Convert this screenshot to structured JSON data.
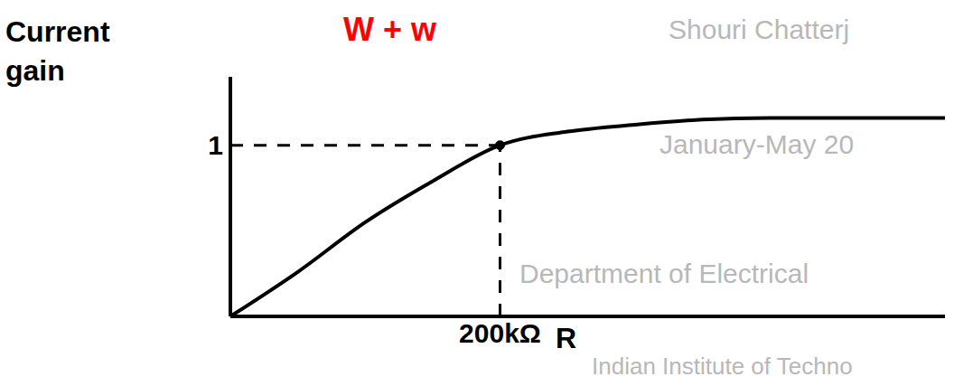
{
  "chart_data": {
    "type": "line",
    "title": "W + w",
    "xlabel": "R",
    "ylabel": "Current gain",
    "x": [
      0,
      50000,
      100000,
      150000,
      200000,
      250000,
      300000,
      350000,
      400000,
      530000
    ],
    "series": [
      {
        "name": "Current gain",
        "color": "#000000",
        "values": [
          0,
          0.26,
          0.55,
          0.79,
          1.0,
          1.08,
          1.12,
          1.15,
          1.16,
          1.16
        ]
      }
    ],
    "xlim": [
      0,
      530000
    ],
    "ylim": [
      0,
      1.4
    ],
    "xticks": [
      {
        "value": 200000,
        "label": "200kΩ"
      }
    ],
    "yticks": [
      1
    ],
    "grid": false,
    "watermark": [
      "Shouri Chatterj",
      "January-May 20",
      "Department of Electrical",
      "Indian Institute of Techno"
    ]
  }
}
